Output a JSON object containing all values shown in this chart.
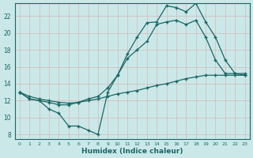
{
  "bg_color": "#cbe8e8",
  "line_color": "#1a6666",
  "grid_color": "#b8d8d8",
  "xlabel": "Humidex (Indice chaleur)",
  "xlim": [
    -0.5,
    23.5
  ],
  "ylim": [
    7.5,
    23.5
  ],
  "yticks": [
    8,
    10,
    12,
    14,
    16,
    18,
    20,
    22
  ],
  "xticks": [
    0,
    1,
    2,
    3,
    4,
    5,
    6,
    7,
    8,
    9,
    10,
    11,
    12,
    13,
    14,
    15,
    16,
    17,
    18,
    19,
    20,
    21,
    22,
    23
  ],
  "line_jagged_x": [
    0,
    1,
    2,
    3,
    4,
    5,
    6,
    7,
    8,
    9,
    10,
    11,
    12,
    13,
    14,
    15,
    16,
    17,
    18,
    19,
    20,
    21,
    22,
    23
  ],
  "line_jagged_y": [
    13,
    12.2,
    12,
    11,
    10.5,
    9,
    9,
    8.5,
    8,
    13,
    15,
    17.5,
    19.5,
    21.2,
    21.3,
    23.2,
    23.0,
    22.5,
    23.5,
    21.3,
    19.5,
    16.8,
    15.2,
    15.2
  ],
  "line_top_x": [
    0,
    1,
    2,
    3,
    4,
    5,
    6,
    7,
    8,
    9,
    10,
    11,
    12,
    13,
    14,
    15,
    16,
    17,
    18,
    19,
    20,
    21,
    22,
    23
  ],
  "line_top_y": [
    13,
    12.2,
    12,
    11.8,
    11.5,
    11.5,
    11.8,
    12.2,
    12.5,
    13.5,
    15,
    17,
    18,
    19,
    21,
    21.3,
    21.5,
    21,
    21.5,
    19.5,
    16.8,
    15.2,
    15.2,
    15.0
  ],
  "line_straight_x": [
    0,
    1,
    2,
    3,
    4,
    5,
    6,
    7,
    8,
    9,
    10,
    11,
    12,
    13,
    14,
    15,
    16,
    17,
    18,
    19,
    20,
    21,
    22,
    23
  ],
  "line_straight_y": [
    13,
    12.5,
    12.2,
    12.0,
    11.8,
    11.7,
    11.8,
    12.0,
    12.2,
    12.5,
    12.8,
    13.0,
    13.2,
    13.5,
    13.8,
    14.0,
    14.3,
    14.6,
    14.8,
    15.0,
    15.0,
    15.0,
    15.0,
    15.0
  ]
}
